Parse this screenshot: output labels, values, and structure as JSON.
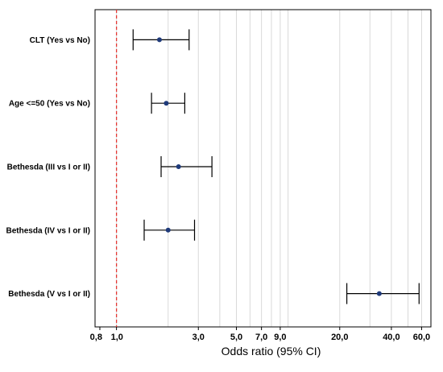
{
  "chart_data": {
    "type": "forest",
    "title": "",
    "xlabel": "Odds ratio (95% CI)",
    "ylabel": "",
    "x_scale": "log",
    "xlim": [
      0.75,
      68
    ],
    "reference_line": 1.0,
    "xticks": [
      0.8,
      1.0,
      3.0,
      5.0,
      7.0,
      9.0,
      20.0,
      40.0,
      60.0
    ],
    "xtick_labels": [
      "0,8",
      "1,0",
      "3,0",
      "5,0",
      "7,0",
      "9,0",
      "20,0",
      "40,0",
      "60,0"
    ],
    "grid": "vertical",
    "rows": [
      {
        "label": "CLT (Yes vs No)",
        "or": 1.78,
        "lower": 1.25,
        "upper": 2.65
      },
      {
        "label": "Age <=50 (Yes vs No)",
        "or": 1.95,
        "lower": 1.6,
        "upper": 2.5
      },
      {
        "label": "Bethesda (III vs I or II)",
        "or": 2.3,
        "lower": 1.82,
        "upper": 3.6
      },
      {
        "label": "Bethesda (IV vs I or II)",
        "or": 2.0,
        "lower": 1.45,
        "upper": 2.85
      },
      {
        "label": "Bethesda (V vs I or II)",
        "or": 34.0,
        "lower": 22.0,
        "upper": 58.0
      }
    ],
    "colors": {
      "point": "#1f3a7a",
      "ci": "#000000",
      "reference": "#e53935",
      "grid": "#d9d9d9",
      "frame": "#000000"
    }
  }
}
